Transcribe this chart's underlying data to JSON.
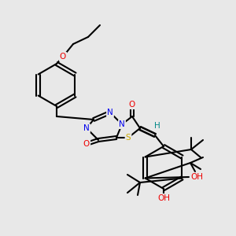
{
  "bg_color": "#e8e8e8",
  "bond_color": "#000000",
  "atom_colors": {
    "N": "#0000ee",
    "O": "#ee0000",
    "S": "#ccaa00",
    "H": "#008888",
    "C": "#000000"
  },
  "figsize": [
    3.0,
    3.0
  ],
  "dpi": 100
}
